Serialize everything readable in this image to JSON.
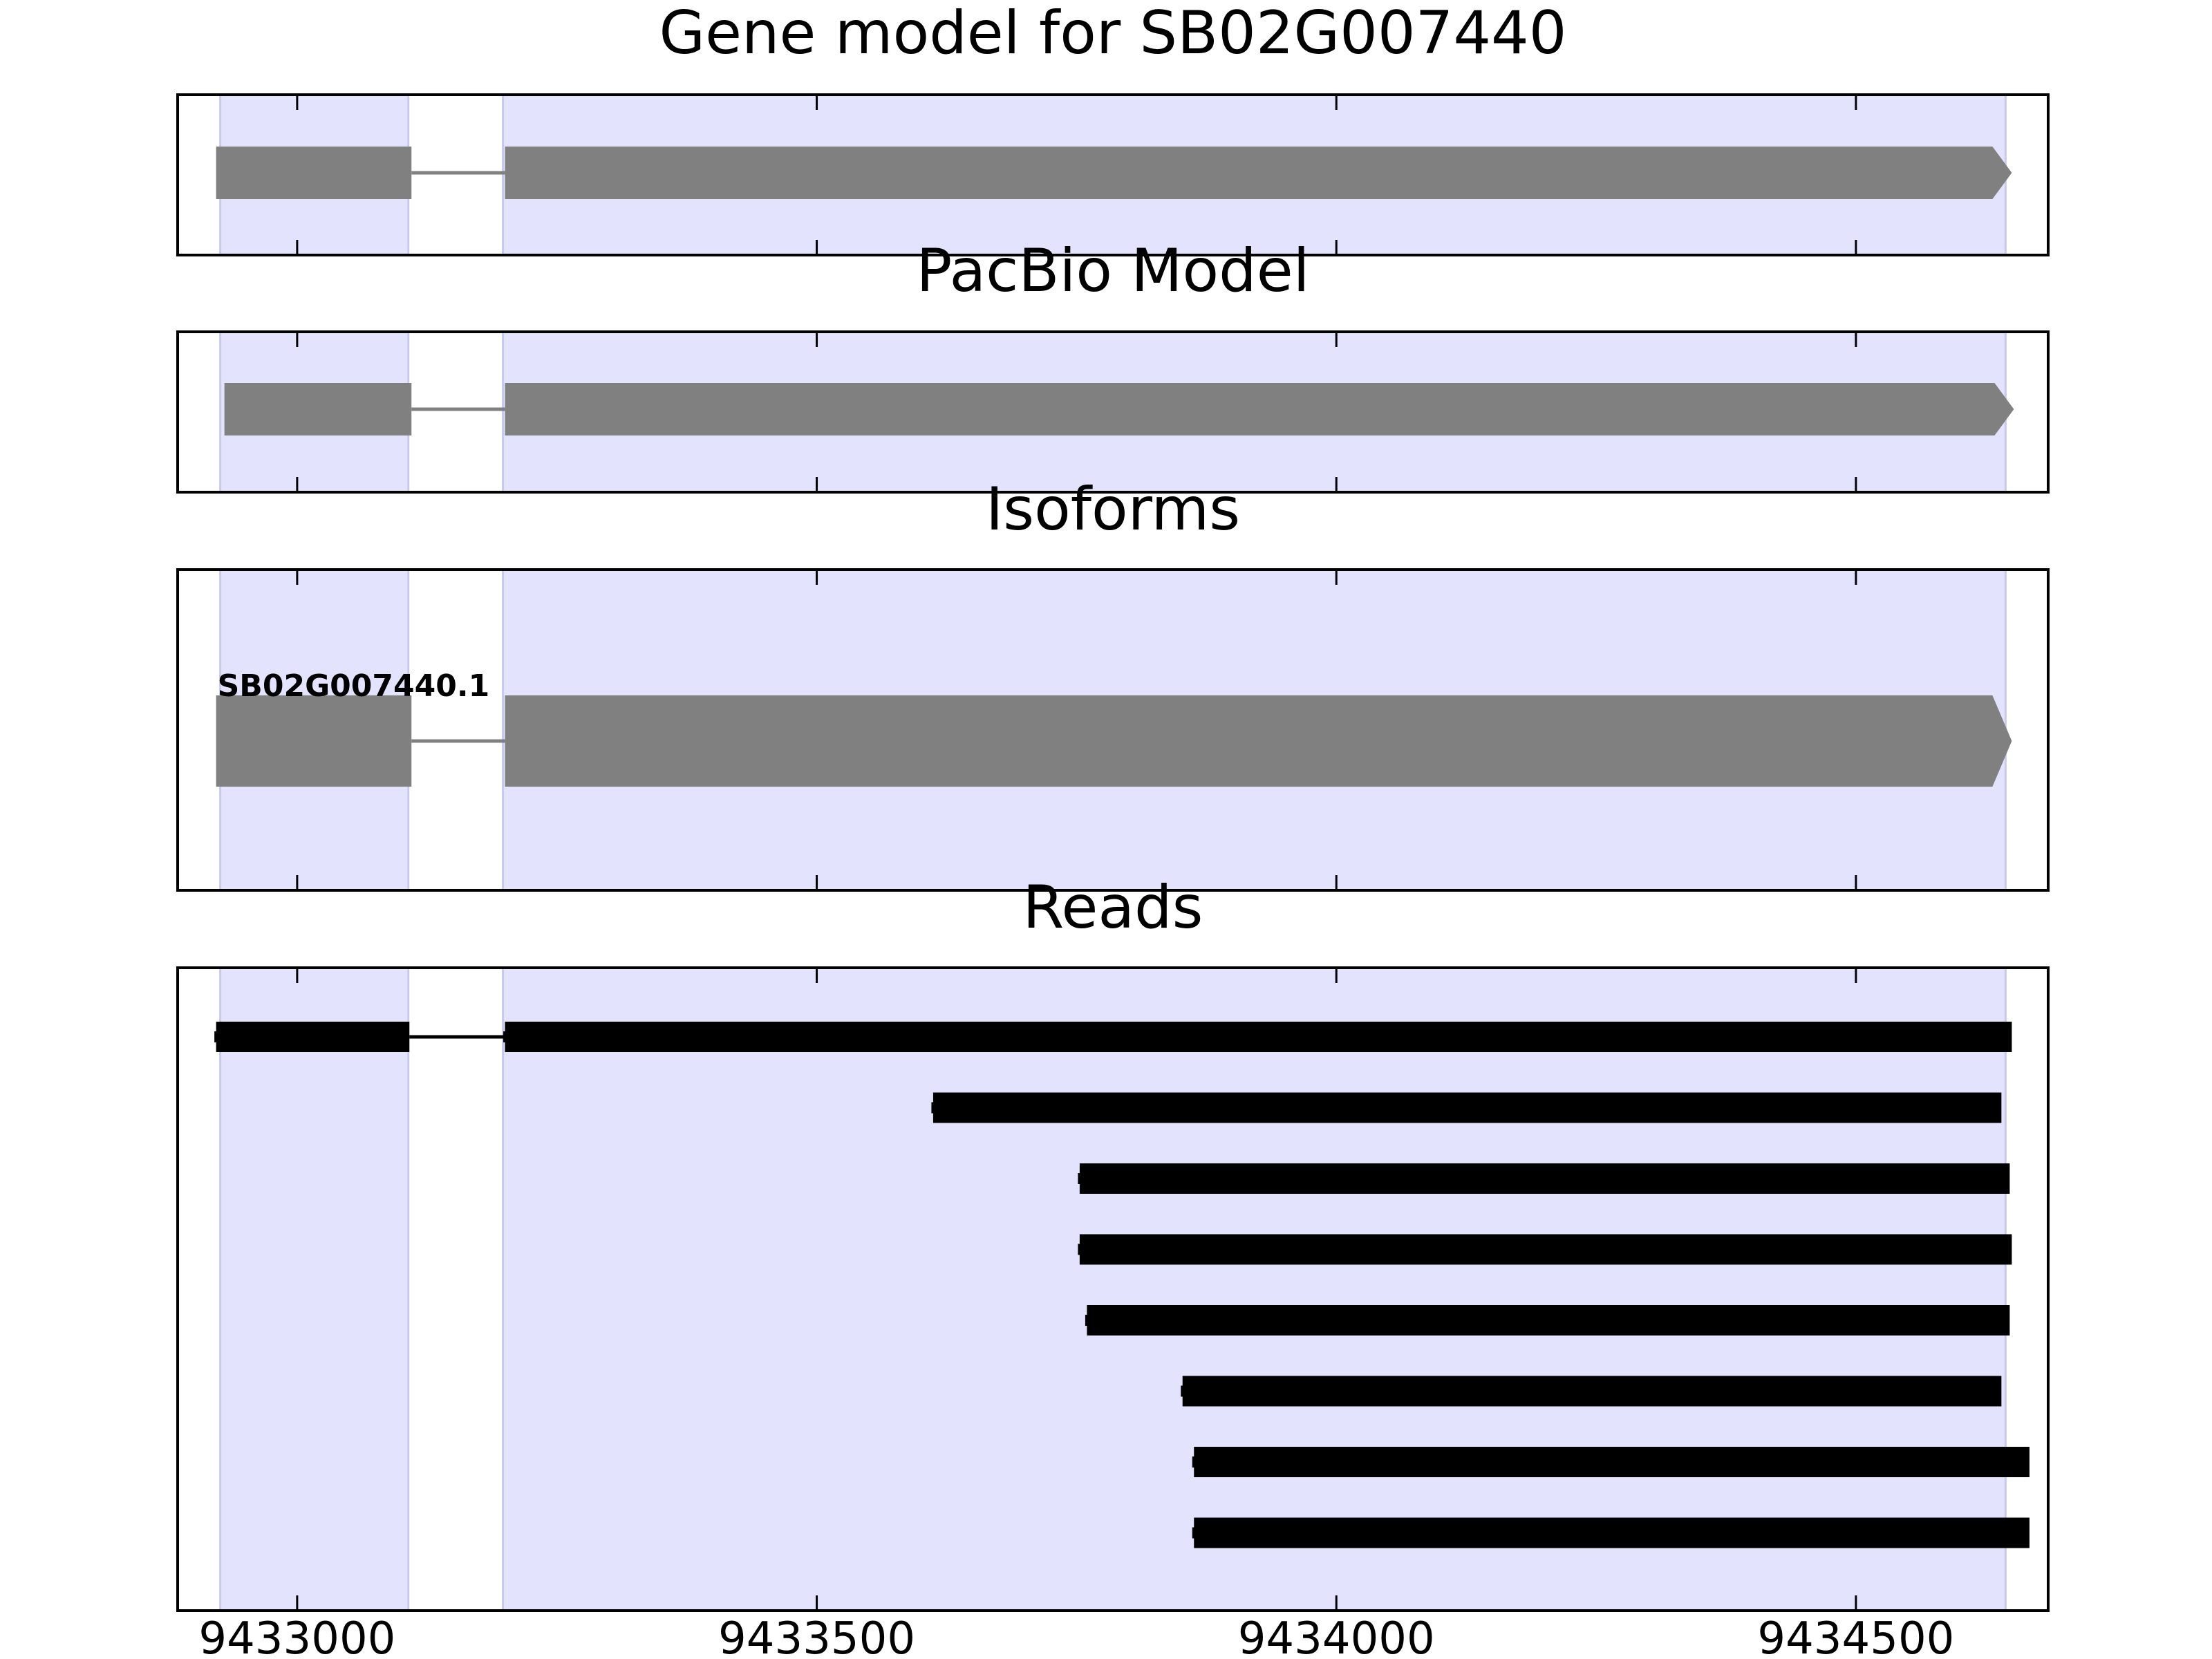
{
  "chart_data": {
    "type": "gene-track",
    "xlim": [
      9432885,
      9434685
    ],
    "xticks": [
      9433000,
      9433500,
      9434000,
      9434500
    ],
    "shaded_regions": [
      [
        9432926,
        9433107
      ],
      [
        9433198,
        9434644
      ]
    ],
    "shade_color": "#e3e3fd",
    "panels": [
      {
        "key": "gene_model",
        "title": "Gene model for SB02G007440",
        "label": "",
        "features": [
          {
            "exons": [
              [
                9432922,
                9433110
              ],
              [
                9433200,
                9434650
              ]
            ],
            "strand": "+",
            "color": "#808080"
          }
        ]
      },
      {
        "key": "pacbio",
        "title": "PacBio Model",
        "label": "",
        "features": [
          {
            "exons": [
              [
                9432930,
                9433110
              ],
              [
                9433200,
                9434652
              ]
            ],
            "strand": "+",
            "color": "#808080"
          }
        ]
      },
      {
        "key": "isoforms",
        "title": "Isoforms",
        "label": "SB02G007440.1",
        "features": [
          {
            "exons": [
              [
                9432922,
                9433110
              ],
              [
                9433200,
                9434650
              ]
            ],
            "strand": "+",
            "color": "#808080"
          }
        ]
      },
      {
        "key": "reads",
        "title": "Reads",
        "label": "",
        "features": [
          {
            "exons": [
              [
                9432922,
                9433108
              ],
              [
                9433200,
                9434650
              ]
            ],
            "color": "#000000"
          },
          {
            "exons": [
              [
                9433612,
                9434640
              ]
            ],
            "color": "#000000"
          },
          {
            "exons": [
              [
                9433753,
                9434648
              ]
            ],
            "color": "#000000"
          },
          {
            "exons": [
              [
                9433753,
                9434650
              ]
            ],
            "color": "#000000"
          },
          {
            "exons": [
              [
                9433760,
                9434648
              ]
            ],
            "color": "#000000"
          },
          {
            "exons": [
              [
                9433852,
                9434640
              ]
            ],
            "color": "#000000"
          },
          {
            "exons": [
              [
                9433863,
                9434667
              ]
            ],
            "color": "#000000"
          },
          {
            "exons": [
              [
                9433863,
                9434667
              ]
            ],
            "color": "#000000"
          }
        ]
      }
    ]
  }
}
